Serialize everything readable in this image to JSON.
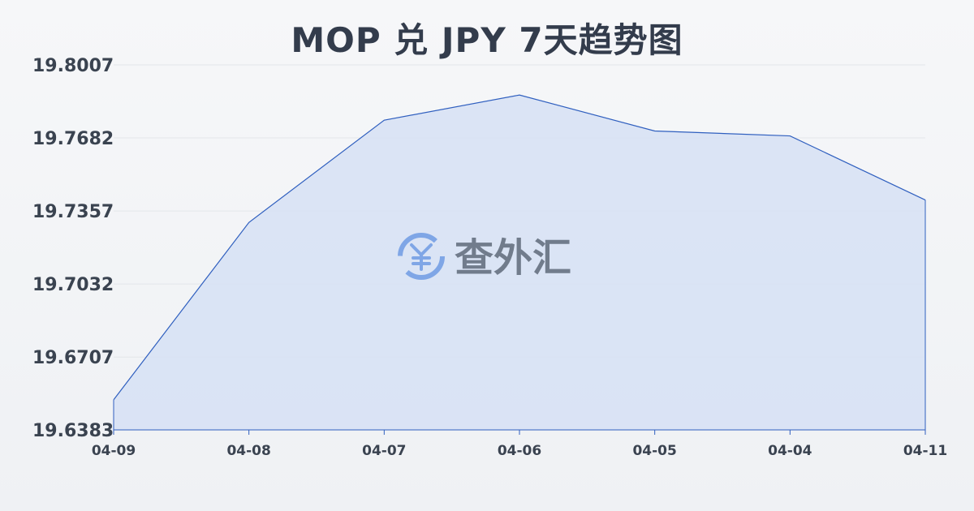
{
  "chart_data": {
    "type": "area",
    "title": "MOP 兑 JPY 7天趋势图",
    "xlabel": "",
    "ylabel": "",
    "categories": [
      "04-09",
      "04-08",
      "04-07",
      "04-06",
      "04-05",
      "04-04",
      "04-11"
    ],
    "series": [
      {
        "values": [
          19.6517,
          19.7306,
          19.7761,
          19.7873,
          19.7713,
          19.7691,
          19.7406
        ]
      }
    ],
    "y_ticks": [
      "19.8007",
      "19.7682",
      "19.7357",
      "19.7032",
      "19.6707",
      "19.6383"
    ],
    "ylim": [
      19.6383,
      19.8007
    ],
    "grid": true,
    "legend": "none",
    "colors": {
      "line": "#2f5fbf",
      "fill": "#d6e1f5",
      "grid": "#e3e6ea",
      "text": "#333c4c"
    }
  },
  "watermark": {
    "text": "查外汇",
    "icon": "yen-exchange-icon"
  }
}
